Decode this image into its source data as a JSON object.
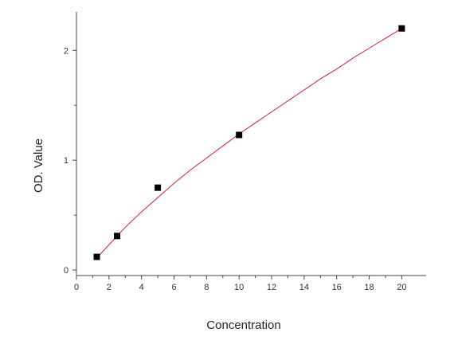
{
  "chart_data": {
    "type": "scatter",
    "xlabel": "Concentration",
    "ylabel": "OD. Value",
    "xlim": [
      0,
      21.5
    ],
    "ylim": [
      -0.05,
      2.35
    ],
    "xticks": [
      0,
      2,
      4,
      6,
      8,
      10,
      12,
      14,
      16,
      18,
      20
    ],
    "yticks": [
      0,
      1,
      2
    ],
    "grid": false,
    "series": [
      {
        "points": [
          {
            "x": 1.25,
            "y": 0.12
          },
          {
            "x": 2.5,
            "y": 0.31
          },
          {
            "x": 5,
            "y": 0.75
          },
          {
            "x": 10,
            "y": 1.23
          },
          {
            "x": 20,
            "y": 2.2
          }
        ],
        "marker_color": "#000000"
      }
    ],
    "fit_curve": {
      "color": "#e8182c",
      "x": [
        1.25,
        2,
        3,
        4,
        5,
        6,
        7,
        8,
        9,
        10,
        11,
        12,
        13,
        14,
        15,
        16,
        17,
        18,
        19,
        20
      ],
      "y": [
        0.11,
        0.23,
        0.39,
        0.53,
        0.66,
        0.79,
        0.91,
        1.02,
        1.13,
        1.24,
        1.34,
        1.44,
        1.54,
        1.64,
        1.74,
        1.83,
        1.93,
        2.02,
        2.11,
        2.2
      ]
    }
  }
}
